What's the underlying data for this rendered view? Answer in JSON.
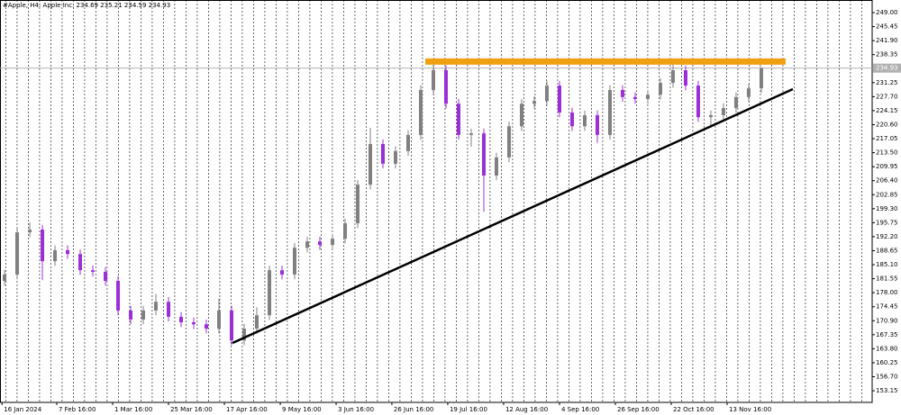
{
  "chart_data": {
    "type": "candlestick",
    "title": "#Apple, H4:  Apple Inc.  234.69 235.21 234.59 234.93",
    "up_color": "#808080",
    "down_color": "#9b2fd6",
    "x": [
      0,
      1,
      2,
      3,
      4,
      5,
      6,
      7,
      8,
      9,
      10,
      11,
      12,
      13,
      14,
      15,
      16,
      17,
      18,
      19,
      20,
      21,
      22,
      23,
      24,
      25,
      26,
      27,
      28,
      29,
      30,
      31,
      32,
      33,
      34,
      35,
      36,
      37,
      38,
      39,
      40,
      41,
      42,
      43,
      44,
      45,
      46,
      47,
      48,
      49,
      50,
      51,
      52,
      53,
      54,
      55,
      56,
      57,
      58,
      59,
      60
    ],
    "open": [
      181.0,
      182.6,
      193.3,
      194.0,
      186.0,
      188.8,
      187.8,
      183.7,
      183.3,
      181.0,
      173.5,
      171.2,
      173.5,
      175.7,
      171.9,
      170.5,
      170.0,
      168.9,
      173.5,
      165.9,
      168.9,
      172.3,
      183.7,
      182.6,
      189.4,
      191.0,
      190.1,
      191.7,
      195.6,
      205.4,
      215.7,
      210.7,
      213.9,
      218.0,
      229.4,
      234.4,
      225.9,
      218.0,
      218.4,
      207.7,
      212.3,
      220.2,
      225.9,
      226.6,
      230.5,
      223.7,
      220.2,
      223.0,
      218.0,
      229.4,
      227.6,
      227.1,
      228.2,
      231.2,
      234.4,
      230.5,
      222.5,
      223.0,
      224.8,
      227.6,
      229.8
    ],
    "high": [
      183.8,
      194.5,
      195.8,
      195.2,
      190.0,
      190.0,
      189.0,
      184.9,
      184.5,
      182.2,
      174.7,
      174.7,
      177.7,
      176.9,
      173.1,
      171.7,
      171.2,
      176.5,
      174.7,
      170.1,
      174.3,
      184.9,
      184.9,
      190.6,
      192.2,
      192.2,
      192.9,
      196.8,
      206.6,
      219.8,
      216.9,
      215.1,
      219.2,
      230.6,
      236.0,
      235.6,
      227.1,
      219.6,
      219.6,
      213.5,
      221.4,
      227.1,
      227.8,
      231.7,
      231.7,
      224.9,
      224.2,
      224.2,
      230.6,
      230.6,
      228.8,
      229.4,
      232.4,
      236.5,
      235.6,
      231.7,
      224.2,
      226.0,
      228.8,
      231.0,
      235.2
    ],
    "low": [
      179.8,
      181.4,
      192.1,
      181.2,
      184.8,
      186.6,
      182.5,
      182.1,
      179.8,
      172.3,
      170.0,
      170.0,
      172.3,
      170.7,
      169.3,
      168.8,
      167.7,
      167.7,
      164.7,
      164.7,
      167.7,
      171.1,
      181.4,
      181.4,
      188.2,
      188.9,
      188.9,
      190.5,
      194.4,
      204.2,
      209.5,
      209.5,
      212.7,
      216.8,
      228.2,
      224.7,
      216.8,
      215.0,
      198.5,
      206.5,
      211.1,
      219.0,
      224.7,
      225.4,
      222.5,
      219.0,
      219.0,
      216.0,
      216.8,
      226.4,
      225.9,
      225.9,
      227.0,
      230.0,
      229.3,
      221.3,
      219.8,
      221.8,
      223.6,
      226.4,
      228.6
    ],
    "close": [
      182.6,
      193.3,
      194.0,
      186.0,
      188.8,
      187.8,
      183.7,
      183.3,
      181.0,
      173.5,
      171.2,
      173.5,
      175.7,
      171.9,
      170.5,
      170.0,
      168.9,
      173.5,
      165.9,
      168.9,
      172.3,
      183.7,
      182.6,
      189.4,
      191.0,
      190.1,
      191.7,
      195.6,
      205.4,
      215.7,
      210.7,
      213.9,
      218.0,
      229.4,
      234.4,
      225.9,
      218.0,
      218.4,
      207.7,
      212.3,
      220.2,
      225.9,
      226.6,
      230.5,
      223.7,
      220.2,
      223.0,
      218.0,
      229.4,
      227.6,
      227.1,
      228.2,
      231.2,
      234.4,
      230.5,
      222.5,
      223.0,
      224.8,
      227.6,
      229.8,
      234.9
    ],
    "xlim": [
      -0.36,
      68.79
    ],
    "ylim": [
      150.2,
      252.2
    ],
    "xticks": [
      {
        "value": -0.2,
        "label": "16 Jan 2024"
      },
      {
        "value": 4.14,
        "label": "7 Feb 16:00"
      },
      {
        "value": 8.57,
        "label": "1 Mar 16:00"
      },
      {
        "value": 13.0,
        "label": "25 Mar 16:00"
      },
      {
        "value": 17.43,
        "label": "17 Apr 16:00"
      },
      {
        "value": 21.86,
        "label": "9 May 16:00"
      },
      {
        "value": 26.29,
        "label": "3 Jun 16:00"
      },
      {
        "value": 30.71,
        "label": "26 Jun 16:00"
      },
      {
        "value": 35.14,
        "label": "19 Jul 16:00"
      },
      {
        "value": 39.57,
        "label": "12 Aug 16:00"
      },
      {
        "value": 44.0,
        "label": "4 Sep 16:00"
      },
      {
        "value": 48.43,
        "label": "26 Sep 16:00"
      },
      {
        "value": 52.86,
        "label": "22 Oct 16:00"
      },
      {
        "value": 57.29,
        "label": "13 Nov 16:00"
      }
    ],
    "yticks": [
      {
        "value": 249,
        "label": "249.00"
      },
      {
        "value": 245.45,
        "label": "245.45"
      },
      {
        "value": 241.9,
        "label": "241.90"
      },
      {
        "value": 238.35,
        "label": "238.35"
      },
      {
        "value": 231.25,
        "label": "231.25"
      },
      {
        "value": 227.7,
        "label": "227.70"
      },
      {
        "value": 224.15,
        "label": "224.15"
      },
      {
        "value": 220.6,
        "label": "220.60"
      },
      {
        "value": 217.05,
        "label": "217.05"
      },
      {
        "value": 213.5,
        "label": "213.50"
      },
      {
        "value": 209.95,
        "label": "209.95"
      },
      {
        "value": 206.4,
        "label": "206.40"
      },
      {
        "value": 202.85,
        "label": "202.85"
      },
      {
        "value": 199.3,
        "label": "199.30"
      },
      {
        "value": 195.75,
        "label": "195.75"
      },
      {
        "value": 192.2,
        "label": "192.20"
      },
      {
        "value": 188.65,
        "label": "188.65"
      },
      {
        "value": 185.1,
        "label": "185.10"
      },
      {
        "value": 181.55,
        "label": "181.55"
      },
      {
        "value": 178,
        "label": "178.00"
      },
      {
        "value": 174.45,
        "label": "174.45"
      },
      {
        "value": 170.9,
        "label": "170.90"
      },
      {
        "value": 167.35,
        "label": "167.35"
      },
      {
        "value": 163.8,
        "label": "163.80"
      },
      {
        "value": 160.25,
        "label": "160.25"
      },
      {
        "value": 156.7,
        "label": "156.70"
      },
      {
        "value": 153.15,
        "label": "153.15"
      }
    ],
    "last_price": {
      "value": 234.93,
      "label": "234.93"
    },
    "resistance": {
      "x": [
        33.36,
        61.93
      ],
      "y": [
        236.6,
        236.6
      ],
      "color": "#f0a010"
    },
    "trendline": {
      "x": [
        18.07,
        62.5
      ],
      "y": [
        165.25,
        229.6
      ],
      "color": "#000000"
    }
  }
}
